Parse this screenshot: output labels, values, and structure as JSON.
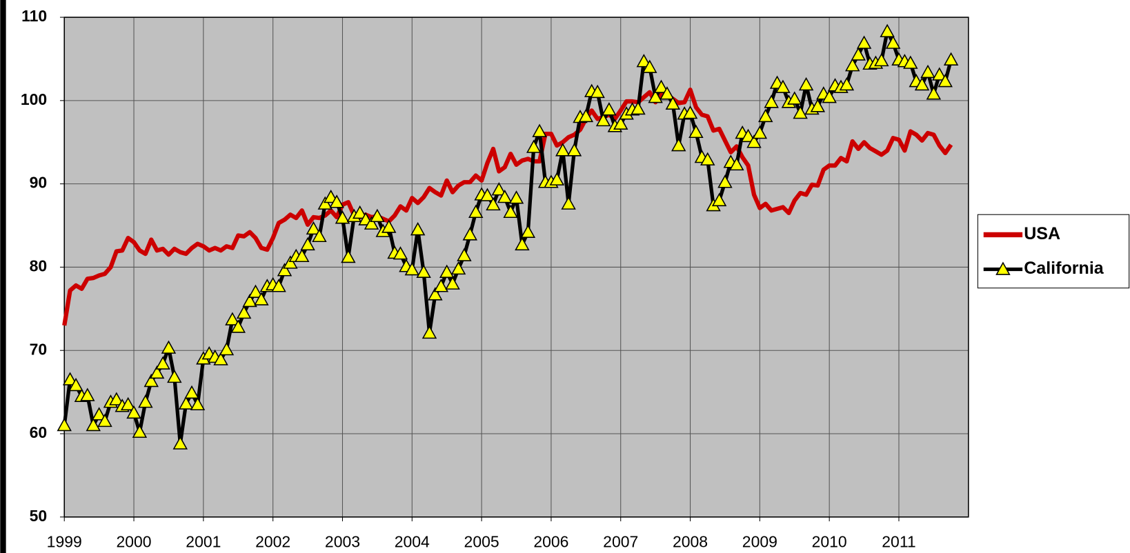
{
  "chart_data": {
    "type": "line",
    "x": [
      1999,
      1999.083,
      1999.167,
      1999.25,
      1999.333,
      1999.417,
      1999.5,
      1999.583,
      1999.667,
      1999.75,
      1999.833,
      1999.917,
      2000,
      2000.083,
      2000.167,
      2000.25,
      2000.333,
      2000.417,
      2000.5,
      2000.583,
      2000.667,
      2000.75,
      2000.833,
      2000.917,
      2001,
      2001.083,
      2001.167,
      2001.25,
      2001.333,
      2001.417,
      2001.5,
      2001.583,
      2001.667,
      2001.75,
      2001.833,
      2001.917,
      2002,
      2002.083,
      2002.167,
      2002.25,
      2002.333,
      2002.417,
      2002.5,
      2002.583,
      2002.667,
      2002.75,
      2002.833,
      2002.917,
      2003,
      2003.083,
      2003.167,
      2003.25,
      2003.333,
      2003.417,
      2003.5,
      2003.583,
      2003.667,
      2003.75,
      2003.833,
      2003.917,
      2004,
      2004.083,
      2004.167,
      2004.25,
      2004.333,
      2004.417,
      2004.5,
      2004.583,
      2004.667,
      2004.75,
      2004.833,
      2004.917,
      2005,
      2005.083,
      2005.167,
      2005.25,
      2005.333,
      2005.417,
      2005.5,
      2005.583,
      2005.667,
      2005.75,
      2005.833,
      2005.917,
      2006,
      2006.083,
      2006.167,
      2006.25,
      2006.333,
      2006.417,
      2006.5,
      2006.583,
      2006.667,
      2006.75,
      2006.833,
      2006.917,
      2007,
      2007.083,
      2007.167,
      2007.25,
      2007.333,
      2007.417,
      2007.5,
      2007.583,
      2007.667,
      2007.75,
      2007.833,
      2007.917,
      2008,
      2008.083,
      2008.167,
      2008.25,
      2008.333,
      2008.417,
      2008.5,
      2008.583,
      2008.667,
      2008.75,
      2008.833,
      2008.917,
      2009,
      2009.083,
      2009.167,
      2009.25,
      2009.333,
      2009.417,
      2009.5,
      2009.583,
      2009.667,
      2009.75,
      2009.833,
      2009.917,
      2010,
      2010.083,
      2010.167,
      2010.25,
      2010.333,
      2010.417,
      2010.5,
      2010.583,
      2010.667,
      2010.75,
      2010.833,
      2010.917,
      2011,
      2011.083,
      2011.167,
      2011.25,
      2011.333,
      2011.417,
      2011.5,
      2011.583,
      2011.667,
      2011.75
    ],
    "series": [
      {
        "name": "USA",
        "color": "#cc0000",
        "marker": "none",
        "values": [
          73,
          77.2,
          77.8,
          77.4,
          78.6,
          78.7,
          79,
          79.2,
          80,
          81.9,
          82,
          83.5,
          83,
          82,
          81.6,
          83.3,
          82,
          82.2,
          81.5,
          82.2,
          81.8,
          81.6,
          82.3,
          82.8,
          82.5,
          82,
          82.3,
          82,
          82.5,
          82.3,
          83.8,
          83.7,
          84.2,
          83.5,
          82.3,
          82.1,
          83.5,
          85.3,
          85.7,
          86.3,
          85.9,
          86.8,
          85.1,
          86,
          85.9,
          86.2,
          86.8,
          86,
          87.5,
          87.8,
          86.2,
          86,
          86.3,
          86,
          86.1,
          85.8,
          85.5,
          86.2,
          87.3,
          86.8,
          88.3,
          87.7,
          88.4,
          89.5,
          89,
          88.6,
          90.4,
          89,
          89.8,
          90.2,
          90.2,
          91,
          90.4,
          92.5,
          94.2,
          91.5,
          92,
          93.6,
          92.3,
          92.8,
          93,
          92.7,
          92.7,
          96,
          96,
          94.6,
          95,
          95.6,
          95.9,
          96.5,
          97.8,
          98.8,
          97.8,
          98,
          98.3,
          97.8,
          98.8,
          99.9,
          99.9,
          99.8,
          100.4,
          101,
          99.8,
          100.9,
          100.7,
          100.2,
          99.7,
          99.8,
          101.3,
          99.2,
          98.3,
          98.1,
          96.4,
          96.6,
          95.2,
          93.8,
          94.5,
          93.2,
          92.2,
          88.7,
          87.1,
          87.6,
          86.8,
          87,
          87.2,
          86.5,
          88,
          88.9,
          88.7,
          89.9,
          89.8,
          91.7,
          92.2,
          92.2,
          93.1,
          92.7,
          95.1,
          94.2,
          95,
          94.3,
          93.9,
          93.5,
          94,
          95.5,
          95.3,
          94,
          96.3,
          95.9,
          95.2,
          96.1,
          95.9,
          94.6,
          93.7,
          94.7
        ]
      },
      {
        "name": "California",
        "color": "#000000",
        "marker": "triangle",
        "marker_color": "#ffff00",
        "values": [
          61,
          66.5,
          65.8,
          64.5,
          64.6,
          61,
          62.3,
          61.5,
          63.8,
          64.1,
          63.3,
          63.5,
          62.5,
          60.2,
          63.8,
          66.3,
          67.3,
          68.4,
          70.3,
          66.8,
          58.8,
          63.6,
          64.9,
          63.5,
          69,
          69.6,
          69.2,
          68.9,
          70.1,
          73.7,
          72.8,
          74.5,
          75.9,
          77,
          76.1,
          77.7,
          77.9,
          77.7,
          79.6,
          80.5,
          81.3,
          81.3,
          82.7,
          84.6,
          83.7,
          87.6,
          88.4,
          87.8,
          85.9,
          81.2,
          86.1,
          86.5,
          85.7,
          85.2,
          86.1,
          84.3,
          84.8,
          81.7,
          81.6,
          80.1,
          79.7,
          84.5,
          79.4,
          72.1,
          76.7,
          77.7,
          79.4,
          78,
          79.8,
          81.4,
          83.9,
          86.6,
          88.7,
          88.6,
          87.5,
          89.3,
          88.4,
          86.6,
          88.3,
          82.7,
          84.2,
          94.4,
          96.3,
          90.2,
          90.2,
          90.5,
          94,
          87.6,
          94,
          98,
          98.1,
          101.1,
          101,
          97.6,
          98.9,
          96.9,
          97.2,
          98.4,
          98.9,
          99,
          104.7,
          104,
          100.4,
          101.6,
          100.8,
          99.6,
          94.6,
          98.4,
          98.5,
          96.2,
          93.2,
          92.9,
          87.4,
          88,
          90.2,
          92.6,
          92.3,
          96.1,
          95.7,
          95,
          96.1,
          98.1,
          99.8,
          102.1,
          101.6,
          99.8,
          100.2,
          98.5,
          101.9,
          99,
          99.3,
          100.8,
          100.4,
          101.8,
          101.6,
          101.9,
          104.2,
          105.5,
          106.9,
          104.4,
          104.5,
          104.8,
          108.3,
          106.9,
          104.9,
          104.7,
          104.5,
          102.3,
          101.9,
          103.4,
          100.8,
          103.1,
          102.3,
          104.9
        ]
      }
    ],
    "xlim": [
      1999,
      2012
    ],
    "xticks": [
      1999,
      2000,
      2001,
      2002,
      2003,
      2004,
      2005,
      2006,
      2007,
      2008,
      2009,
      2010,
      2011
    ],
    "ylim": [
      50,
      110
    ],
    "yticks": [
      50,
      60,
      70,
      80,
      90,
      100,
      110
    ],
    "grid": true,
    "legend": "right"
  }
}
